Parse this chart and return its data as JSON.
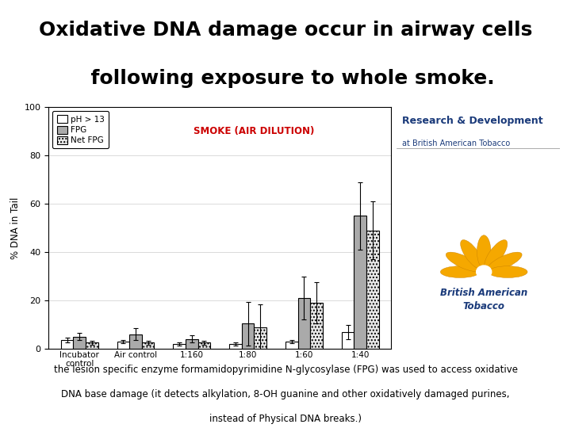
{
  "title_line1": "Oxidative DNA damage occur in airway cells",
  "title_line2": "  following exposure to whole smoke.",
  "title_bg": "#d8e84a",
  "title_fontsize": 18,
  "smoke_label": "SMOKE (AIR DILUTION)",
  "smoke_label_color": "#cc0000",
  "ylabel": "% DNA in Tail",
  "ylim": [
    0,
    100
  ],
  "yticks": [
    0,
    20,
    40,
    60,
    80,
    100
  ],
  "categories": [
    "Incubator\ncontrol",
    "Air control",
    "1:160",
    "1:80",
    "1:60",
    "1:40"
  ],
  "bar_width": 0.22,
  "series": {
    "pH > 13": {
      "color": "#ffffff",
      "hatch": "",
      "edgecolor": "#000000",
      "values": [
        3.5,
        3.0,
        2.0,
        2.0,
        3.0,
        7.0
      ],
      "errors": [
        1.0,
        0.8,
        0.5,
        0.5,
        0.8,
        3.0
      ]
    },
    "FPG": {
      "color": "#aaaaaa",
      "hatch": "",
      "edgecolor": "#000000",
      "values": [
        5.0,
        6.0,
        4.0,
        10.5,
        21.0,
        55.0
      ],
      "errors": [
        1.5,
        2.5,
        1.5,
        9.0,
        9.0,
        14.0
      ]
    },
    "Net FPG": {
      "color": "#e8e8e8",
      "hatch": "....",
      "edgecolor": "#000000",
      "values": [
        2.5,
        2.5,
        2.5,
        9.0,
        19.0,
        49.0
      ],
      "errors": [
        0.8,
        0.8,
        0.8,
        9.5,
        8.5,
        12.0
      ]
    }
  },
  "footnote_line1": "the lesion specific enzyme formamidopyrimidine N-glycosylase (FPG) was used to access oxidative",
  "footnote_line2": "DNA base damage (it detects alkylation, 8-OH guanine and other oxidatively damaged purines,",
  "footnote_line3": "instead of Physical DNA breaks.)",
  "footnote_fontsize": 8.5,
  "chart_bg": "#ffffff",
  "overall_bg": "#ffffff",
  "bat_rd_text": "Research & Development",
  "bat_rd_sub": "at British American Tobacco",
  "bat_name1": "British American",
  "bat_name2": "Tobacco",
  "bat_blue": "#1a3a7a",
  "bat_gold": "#f5a800"
}
